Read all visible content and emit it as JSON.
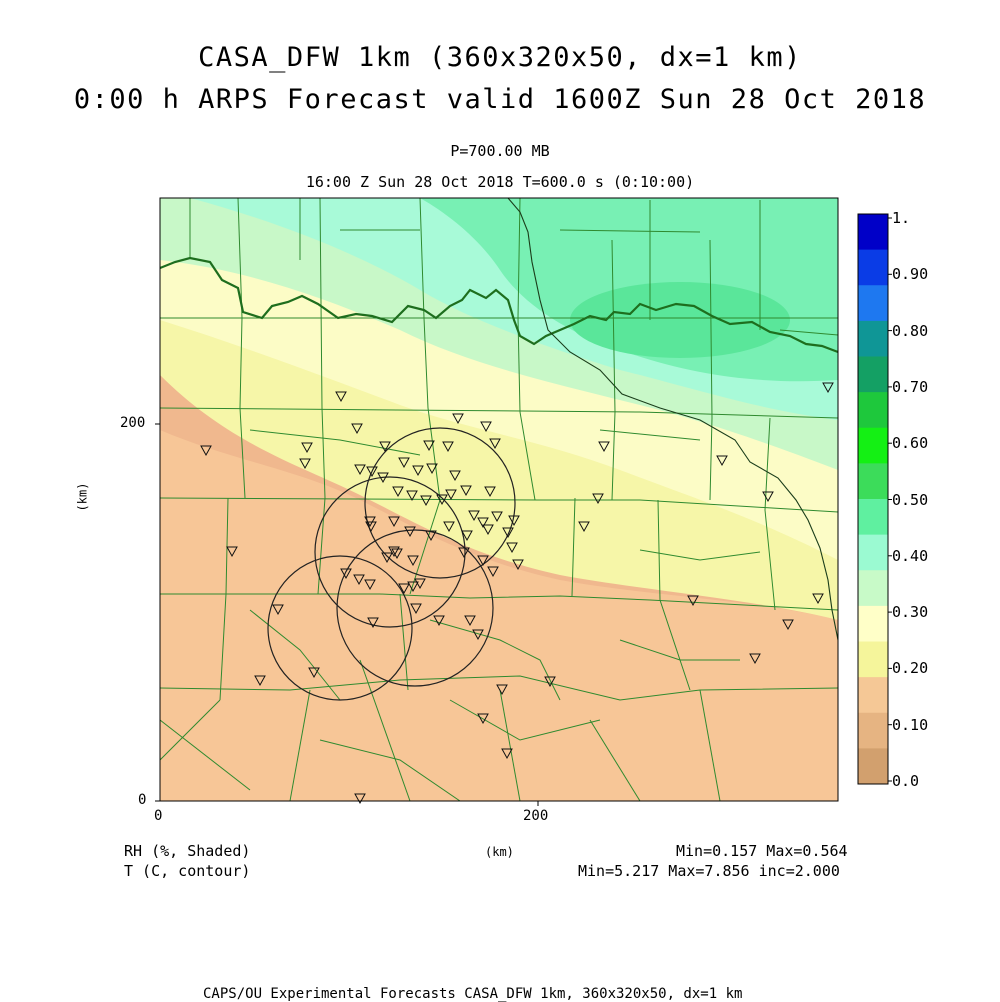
{
  "title_line1": "CASA_DFW 1km (360x320x50, dx=1 km)",
  "title_line2": "0:00 h ARPS Forecast valid 1600Z Sun 28 Oct 2018",
  "level": "P=700.00 MB",
  "time_line": "16:00 Z Sun 28 Oct 2018   T=600.0 s (0:10:00)",
  "axes": {
    "y_unit": "(km)",
    "x_unit": "(km)",
    "y_ticks": [
      "200",
      "0"
    ],
    "x_ticks": [
      "0",
      "200"
    ]
  },
  "colorbar": {
    "labels": [
      "1.",
      "0.90",
      "0.80",
      "0.70",
      "0.60",
      "0.50",
      "0.40",
      "0.30",
      "0.20",
      "0.10",
      "0.0"
    ],
    "colors": [
      "#0000c8",
      "#0a3ce6",
      "#1e78f0",
      "#0f9696",
      "#14a064",
      "#1ec83c",
      "#14f014",
      "#3cdc5a",
      "#5ff0a0",
      "#9bfad2",
      "#c8fac8",
      "#ffffc8",
      "#f5f59b",
      "#f5c896",
      "#e6b482",
      "#d2a06e"
    ]
  },
  "legend": {
    "field1": "RH (%, Shaded)",
    "field2": "T (C, contour)",
    "stats1": "Min=0.157 Max=0.564",
    "stats2": "Min=5.217 Max=7.856 inc=2.000"
  },
  "footer": "CAPS/OU Experimental Forecasts  CASA_DFW 1km, 360x320x50, dx=1 km",
  "map": {
    "fill_colors": {
      "dry_dark": "#f0b88e",
      "dry": "#f7c697",
      "mid_yellow": "#f6f6a8",
      "light_yellow": "#fcfcc6",
      "pale_green": "#c8f8c8",
      "aqua": "#a8fad8",
      "green": "#78f0b4",
      "green_dark": "#5ae69a"
    },
    "county_line_color": "#2f8a2f",
    "contour_color": "#1e6e1e",
    "radar_circle_color": "#222222",
    "marker": "triangle-down-icon"
  }
}
